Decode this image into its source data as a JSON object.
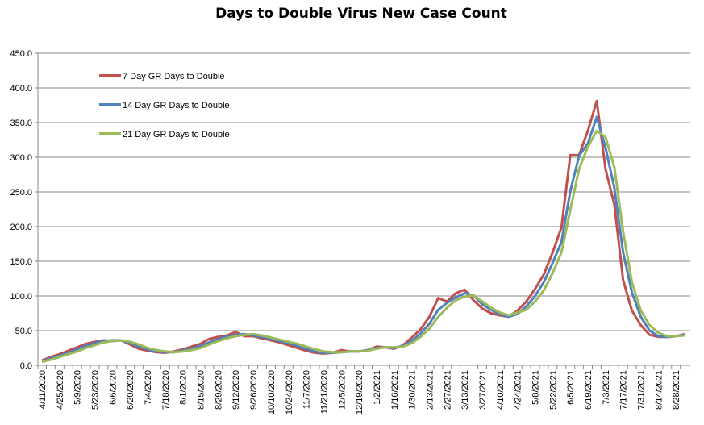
{
  "chart_data": {
    "type": "line",
    "title": "Days to Double Virus New Case Count",
    "xlabel": "",
    "ylabel": "",
    "ylim": [
      0,
      450
    ],
    "yticks": [
      "0.0",
      "50.0",
      "100.0",
      "150.0",
      "200.0",
      "250.0",
      "300.0",
      "350.0",
      "400.0",
      "450.0"
    ],
    "grid": true,
    "legend_position": "top-left",
    "x": [
      "4/11/2020",
      "4/18/2020",
      "4/25/2020",
      "5/2/2020",
      "5/9/2020",
      "5/16/2020",
      "5/23/2020",
      "5/30/2020",
      "6/6/2020",
      "6/13/2020",
      "6/20/2020",
      "6/27/2020",
      "7/4/2020",
      "7/11/2020",
      "7/18/2020",
      "7/25/2020",
      "8/1/2020",
      "8/8/2020",
      "8/15/2020",
      "8/22/2020",
      "8/29/2020",
      "9/5/2020",
      "9/12/2020",
      "9/19/2020",
      "9/26/2020",
      "10/3/2020",
      "10/10/2020",
      "10/17/2020",
      "10/24/2020",
      "10/31/2020",
      "11/7/2020",
      "11/14/2020",
      "11/21/2020",
      "11/28/2020",
      "12/5/2020",
      "12/12/2020",
      "12/19/2020",
      "12/26/2020",
      "1/2/2021",
      "1/9/2021",
      "1/16/2021",
      "1/23/2021",
      "1/30/2021",
      "2/6/2021",
      "2/13/2021",
      "2/20/2021",
      "2/27/2021",
      "3/6/2021",
      "3/13/2021",
      "3/20/2021",
      "3/27/2021",
      "4/3/2021",
      "4/10/2021",
      "4/17/2021",
      "4/24/2021",
      "5/1/2021",
      "5/8/2021",
      "5/15/2021",
      "5/22/2021",
      "5/29/2021",
      "6/5/2021",
      "6/12/2021",
      "6/19/2021",
      "6/26/2021",
      "7/3/2021",
      "7/10/2021",
      "7/17/2021",
      "7/24/2021",
      "7/31/2021",
      "8/7/2021",
      "8/14/2021",
      "8/21/2021",
      "8/28/2021",
      "9/4/2021"
    ],
    "xtick_labels": [
      "4/11/2020",
      "4/25/2020",
      "5/9/2020",
      "5/23/2020",
      "6/6/2020",
      "6/20/2020",
      "7/4/2020",
      "7/18/2020",
      "8/1/2020",
      "8/15/2020",
      "8/29/2020",
      "9/12/2020",
      "9/26/2020",
      "10/10/2020",
      "10/24/2020",
      "11/7/2020",
      "11/21/2020",
      "12/5/2020",
      "12/19/2020",
      "1/2/2021",
      "1/16/2021",
      "1/30/2021",
      "2/13/2021",
      "2/27/2021",
      "3/13/2021",
      "3/27/2021",
      "4/10/2021",
      "4/24/2021",
      "5/8/2021",
      "5/22/2021",
      "6/5/2021",
      "6/19/2021",
      "7/3/2021",
      "7/17/2021",
      "7/31/2021",
      "8/14/2021",
      "8/28/2021"
    ],
    "series": [
      {
        "name": "7 Day GR Days to Double",
        "color": "#C0504D",
        "values": [
          7,
          12,
          16,
          21,
          26,
          31,
          34,
          36,
          35,
          36,
          30,
          24,
          21,
          19,
          18,
          20,
          23,
          27,
          31,
          38,
          41,
          43,
          48,
          42,
          42,
          39,
          36,
          33,
          29,
          25,
          21,
          18,
          17,
          18,
          22,
          20,
          20,
          22,
          27,
          26,
          24,
          29,
          40,
          52,
          70,
          97,
          92,
          104,
          109,
          94,
          82,
          75,
          72,
          70,
          79,
          92,
          110,
          131,
          163,
          199,
          303,
          303,
          338,
          381,
          283,
          232,
          123,
          79,
          58,
          44,
          41,
          41,
          42,
          45
        ]
      },
      {
        "name": "14 Day GR Days to Double",
        "color": "#4F81BD",
        "values": [
          6,
          10,
          14,
          18,
          23,
          28,
          32,
          35,
          36,
          36,
          32,
          27,
          23,
          20,
          19,
          19,
          21,
          24,
          28,
          33,
          38,
          41,
          44,
          45,
          43,
          41,
          38,
          35,
          32,
          28,
          24,
          20,
          18,
          18,
          19,
          20,
          20,
          22,
          25,
          26,
          25,
          28,
          35,
          46,
          60,
          80,
          90,
          98,
          104,
          101,
          88,
          80,
          74,
          70,
          74,
          85,
          100,
          120,
          148,
          178,
          251,
          302,
          320,
          358,
          314,
          256,
          163,
          105,
          70,
          50,
          42,
          41,
          42,
          44
        ]
      },
      {
        "name": "21 Day GR Days to Double",
        "color": "#9BBB59",
        "values": [
          5,
          8,
          12,
          16,
          20,
          25,
          29,
          33,
          35,
          36,
          34,
          30,
          25,
          22,
          20,
          19,
          20,
          22,
          25,
          30,
          35,
          39,
          42,
          44,
          45,
          43,
          40,
          37,
          34,
          31,
          27,
          23,
          20,
          19,
          19,
          20,
          20,
          21,
          24,
          26,
          26,
          27,
          32,
          41,
          53,
          70,
          83,
          94,
          99,
          101,
          92,
          83,
          76,
          72,
          76,
          80,
          92,
          108,
          133,
          163,
          224,
          283,
          315,
          338,
          329,
          286,
          193,
          120,
          79,
          58,
          47,
          42,
          42,
          43
        ]
      }
    ]
  }
}
